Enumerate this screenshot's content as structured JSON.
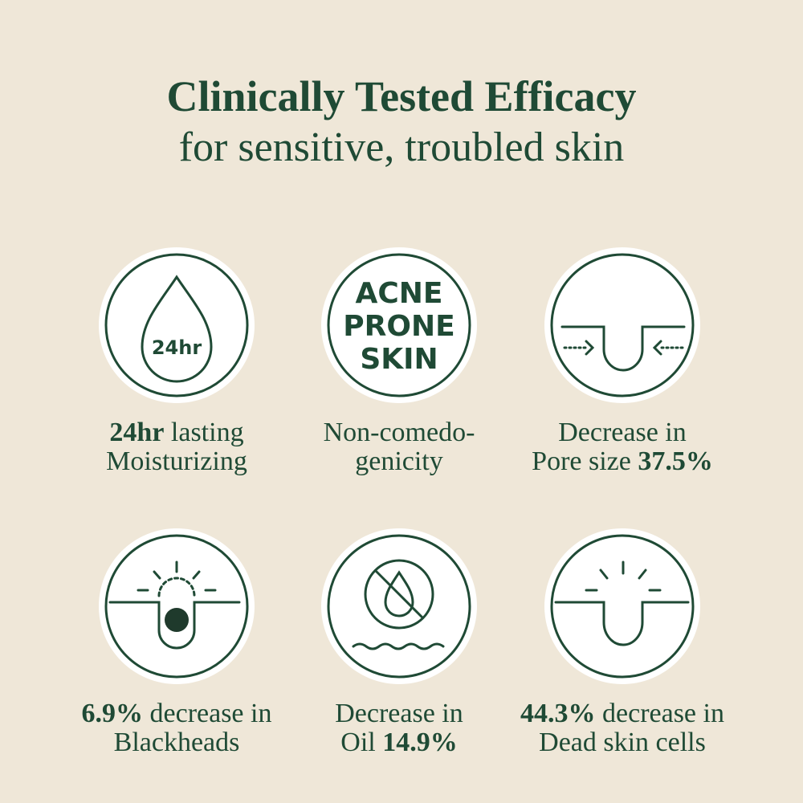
{
  "header": {
    "title": "Clinically Tested Efficacy",
    "subtitle": "for sensitive, troubled skin"
  },
  "items": [
    {
      "icon_text": [
        "24hr"
      ],
      "caption": [
        [
          {
            "text": "24hr",
            "bold": true
          },
          {
            "text": "lasting"
          }
        ],
        [
          {
            "text": "Moisturizing"
          }
        ]
      ]
    },
    {
      "icon_text": [
        "ACNE",
        "PRONE",
        "SKIN"
      ],
      "caption": [
        [
          {
            "text": "Non-comedo-"
          }
        ],
        [
          {
            "text": "genicity"
          }
        ]
      ]
    },
    {
      "icon_text": [],
      "caption": [
        [
          {
            "text": "Decrease in"
          }
        ],
        [
          {
            "text": "Pore size"
          },
          {
            "text": "37.5%",
            "bold": true
          }
        ]
      ]
    },
    {
      "icon_text": [],
      "caption": [
        [
          {
            "text": "6.9%",
            "bold": true
          },
          {
            "text": "decrease in"
          }
        ],
        [
          {
            "text": "Blackheads"
          }
        ]
      ]
    },
    {
      "icon_text": [],
      "caption": [
        [
          {
            "text": "Decrease in"
          }
        ],
        [
          {
            "text": "Oil"
          },
          {
            "text": "14.9%",
            "bold": true
          }
        ]
      ]
    },
    {
      "icon_text": [],
      "caption": [
        [
          {
            "text": "44.3%",
            "bold": true
          },
          {
            "text": "decrease in"
          }
        ],
        [
          {
            "text": "Dead skin cells"
          }
        ]
      ]
    }
  ]
}
